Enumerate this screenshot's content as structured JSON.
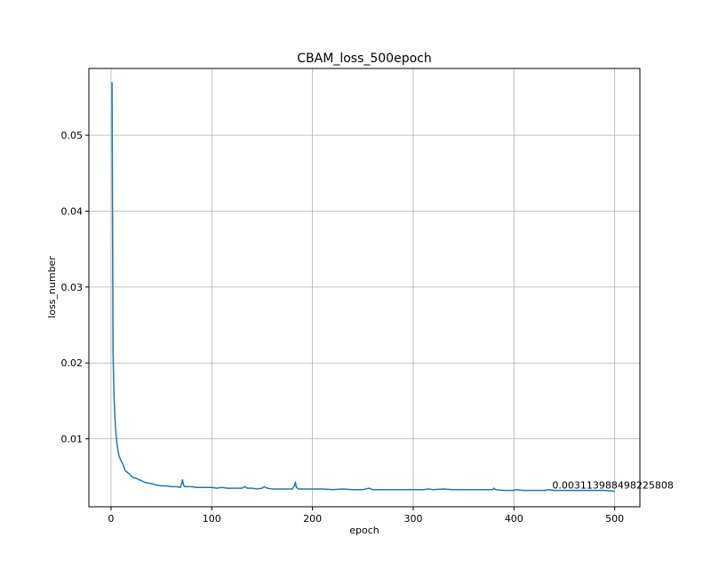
{
  "chart_data": {
    "type": "line",
    "title": "CBAM_loss_500epoch",
    "xlabel": "epoch",
    "ylabel": "loss_number",
    "xlim": [
      -22,
      525
    ],
    "ylim": [
      0.00105,
      0.0588
    ],
    "xticks": [
      0,
      100,
      200,
      300,
      400,
      500
    ],
    "xtick_labels": [
      "0",
      "100",
      "200",
      "300",
      "400",
      "500"
    ],
    "yticks": [
      0.01,
      0.02,
      0.03,
      0.04,
      0.05
    ],
    "ytick_labels": [
      "0.01",
      "0.02",
      "0.03",
      "0.04",
      "0.05"
    ],
    "grid": true,
    "line_color": "#1f77b4",
    "series": [
      {
        "x": [
          1,
          2,
          3,
          4,
          5,
          6,
          7,
          8,
          10,
          12,
          14,
          16,
          18,
          20,
          22,
          25,
          28,
          30,
          33,
          36,
          40,
          45,
          50,
          55,
          60,
          65,
          69,
          70,
          71,
          72,
          73,
          75,
          80,
          85,
          90,
          95,
          100,
          105,
          110,
          115,
          120,
          125,
          130,
          133,
          135,
          140,
          145,
          150,
          152,
          155,
          160,
          165,
          170,
          175,
          180,
          182,
          183,
          184,
          186,
          190,
          200,
          210,
          220,
          230,
          240,
          250,
          256,
          258,
          260,
          270,
          280,
          290,
          300,
          310,
          315,
          320,
          330,
          340,
          350,
          360,
          370,
          379,
          380,
          382,
          390,
          400,
          401,
          410,
          420,
          430,
          435,
          440,
          450,
          460,
          470,
          480,
          490,
          500
        ],
        "values": [
          0.057,
          0.0215,
          0.0155,
          0.0125,
          0.0105,
          0.0092,
          0.0084,
          0.0077,
          0.0071,
          0.0066,
          0.0058,
          0.0056,
          0.0054,
          0.0051,
          0.0049,
          0.0048,
          0.0046,
          0.0045,
          0.0043,
          0.0042,
          0.0041,
          0.0039,
          0.0038,
          0.0038,
          0.0037,
          0.0037,
          0.0036,
          0.0041,
          0.0046,
          0.0039,
          0.0037,
          0.0037,
          0.0037,
          0.0036,
          0.0036,
          0.0036,
          0.0036,
          0.0035,
          0.0036,
          0.0035,
          0.0035,
          0.0035,
          0.0035,
          0.0037,
          0.0035,
          0.0035,
          0.0034,
          0.0035,
          0.0037,
          0.0035,
          0.0034,
          0.0034,
          0.0034,
          0.0034,
          0.0034,
          0.0038,
          0.0043,
          0.0036,
          0.0034,
          0.0034,
          0.0034,
          0.0034,
          0.0033,
          0.0034,
          0.0033,
          0.0033,
          0.0035,
          0.0034,
          0.0033,
          0.0033,
          0.0033,
          0.0033,
          0.0033,
          0.0033,
          0.0034,
          0.0033,
          0.0034,
          0.0033,
          0.0033,
          0.0033,
          0.0033,
          0.0033,
          0.0035,
          0.0033,
          0.0032,
          0.0032,
          0.0033,
          0.0032,
          0.0032,
          0.0032,
          0.0033,
          0.0032,
          0.0032,
          0.0032,
          0.0032,
          0.0032,
          0.0032,
          0.0031
        ]
      }
    ],
    "annotation": {
      "text": "0.003113988498225808",
      "x": 438,
      "y": 0.00345
    }
  }
}
